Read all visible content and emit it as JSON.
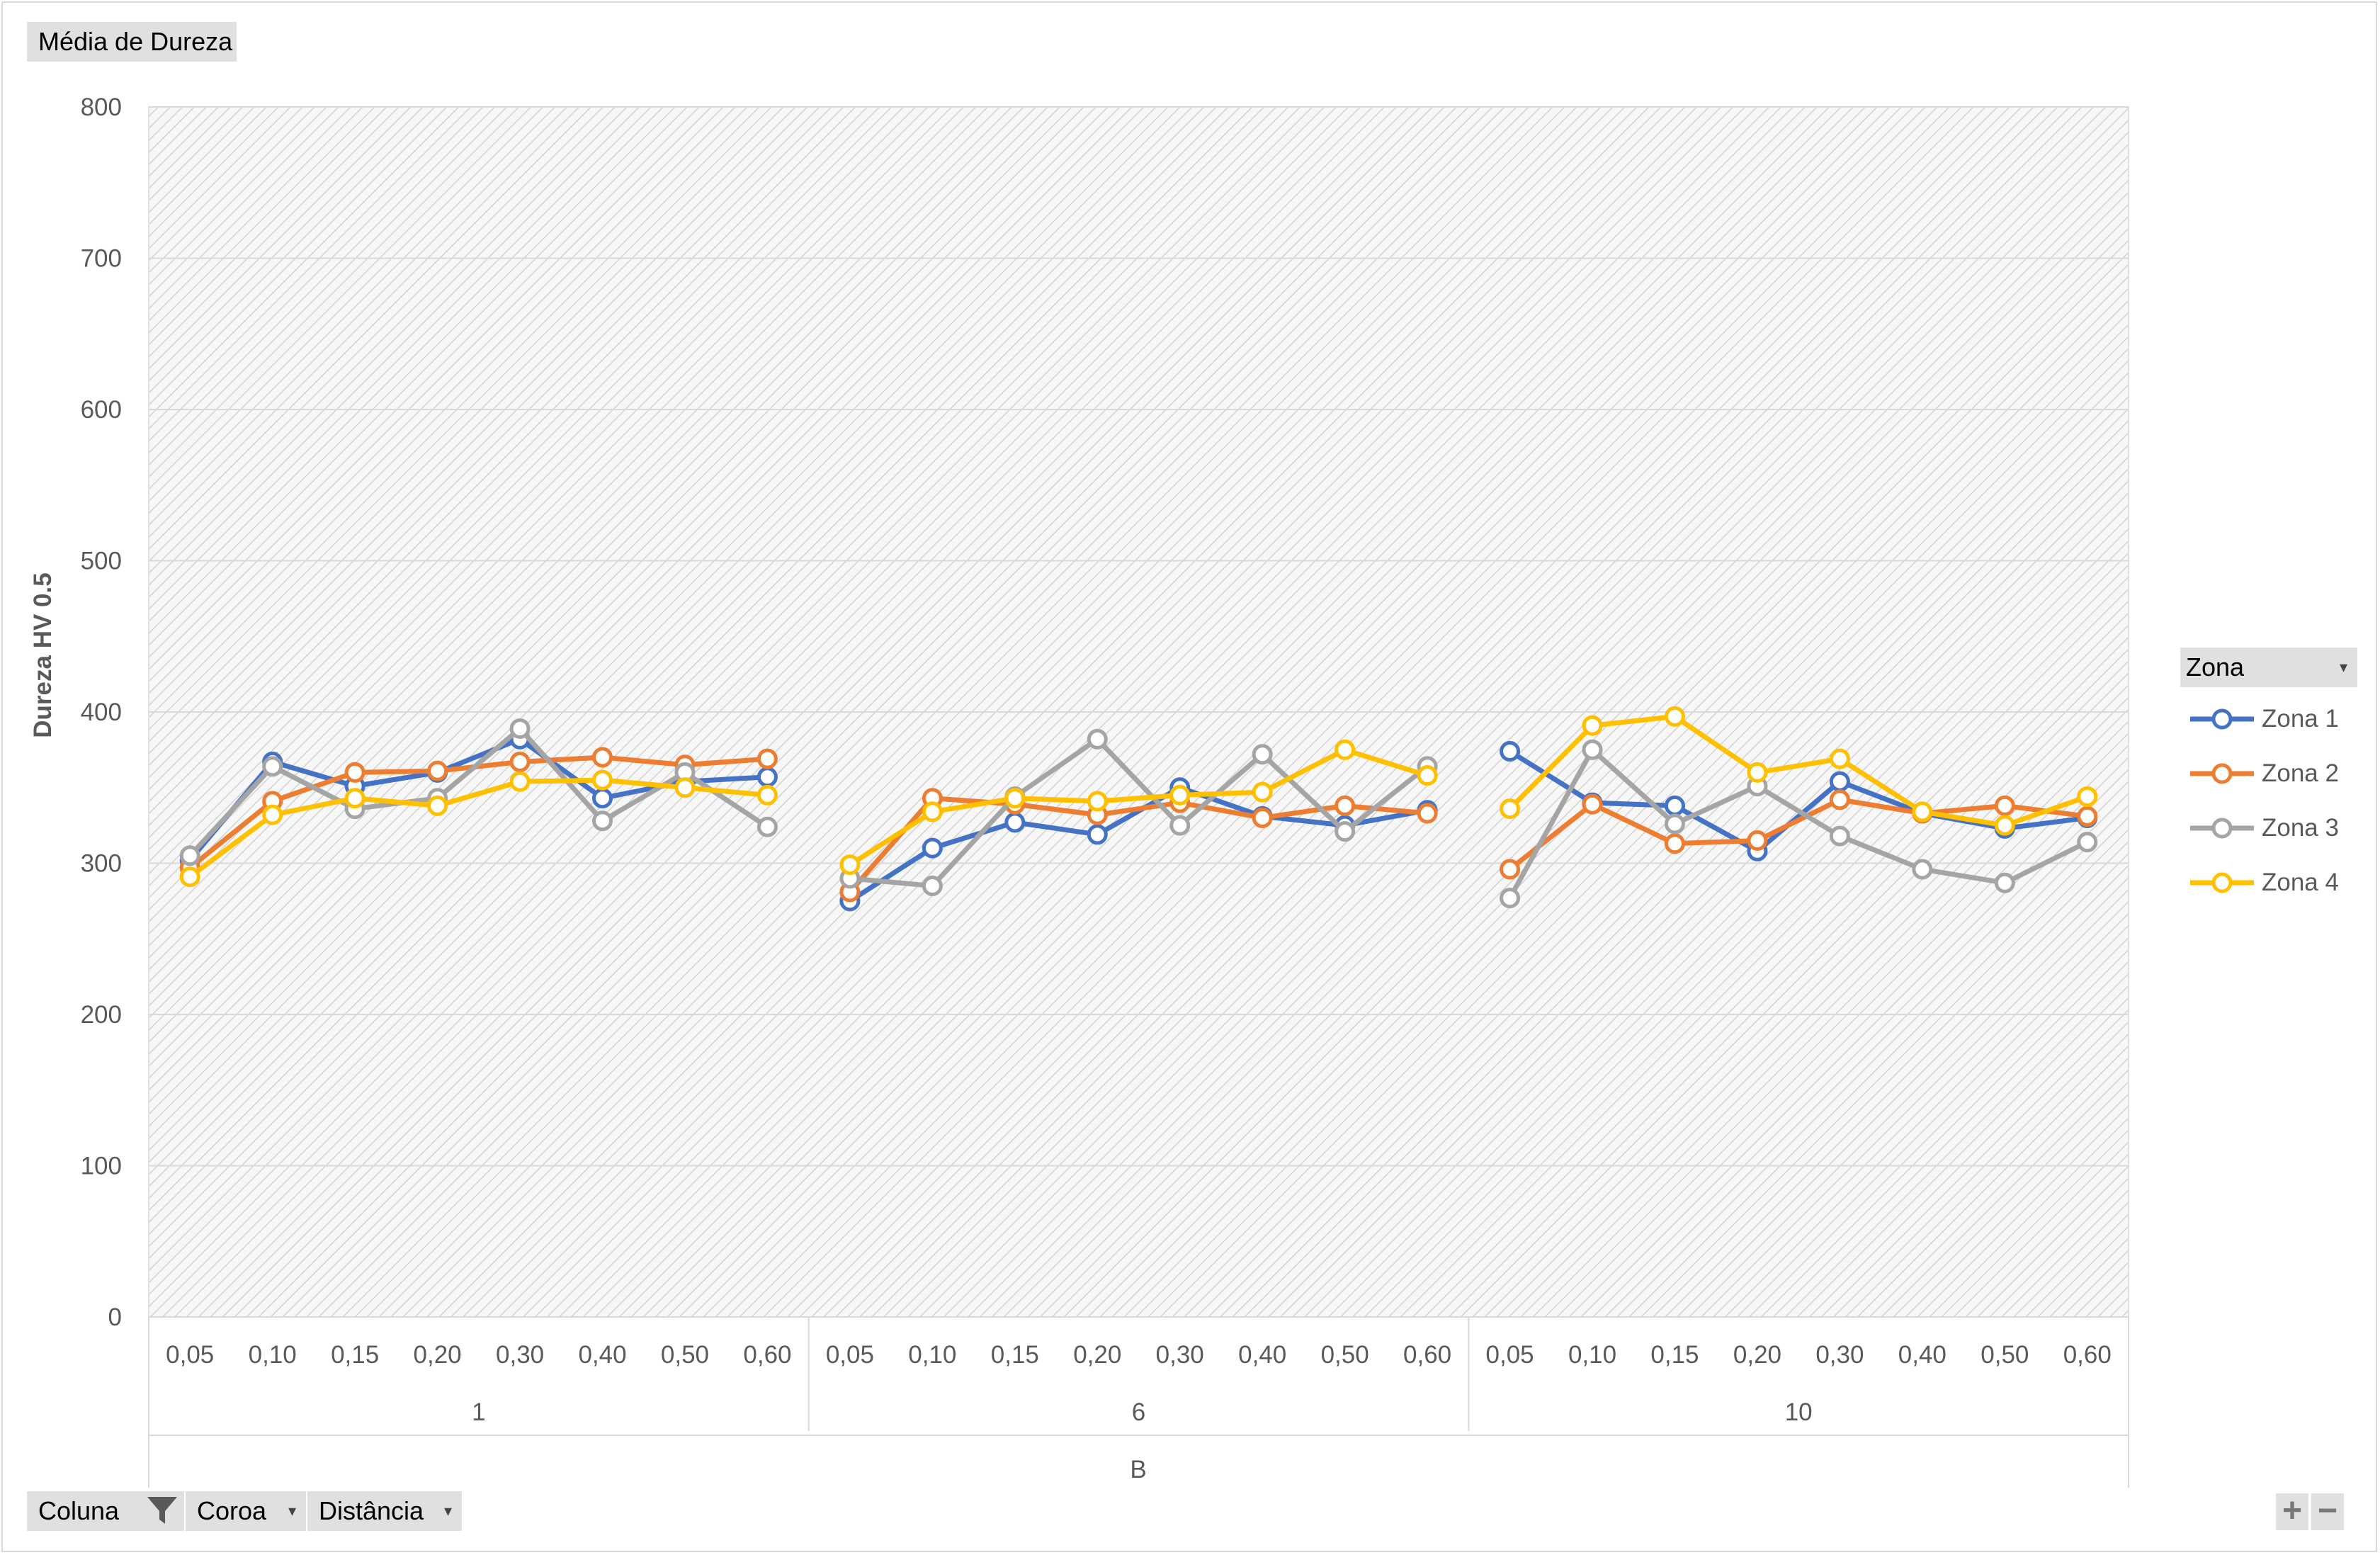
{
  "header": {
    "title": "Média de Dureza"
  },
  "filters": {
    "coluna": "Coluna",
    "coroa": "Coroa",
    "distancia": "Distância"
  },
  "legend_box": {
    "title": "Zona"
  },
  "zoom": {
    "plus": "+",
    "minus": "−"
  },
  "colors": {
    "zona1": "#4472C4",
    "zona2": "#ED7D31",
    "zona3": "#A5A5A5",
    "zona4": "#FFC000",
    "grid": "#d9d9d9",
    "plot_hatch": "#d0d0d0"
  },
  "chart_data": {
    "type": "line",
    "title": "",
    "ylabel": "Dureza HV 0.5",
    "xlabel": "B",
    "ylim": [
      0,
      800
    ],
    "yticks": [
      0,
      100,
      200,
      300,
      400,
      500,
      600,
      700,
      800
    ],
    "grid": true,
    "legend_position": "right",
    "groups": [
      "1",
      "6",
      "10"
    ],
    "categories": [
      "0,05",
      "0,10",
      "0,15",
      "0,20",
      "0,30",
      "0,40",
      "0,50",
      "0,60"
    ],
    "series": [
      {
        "name": "Zona 1",
        "color": "#4472C4",
        "values": [
          [
            302,
            367,
            351,
            360,
            382,
            343,
            354,
            357
          ],
          [
            275,
            310,
            327,
            319,
            350,
            331,
            325,
            335
          ],
          [
            374,
            340,
            338,
            308,
            354,
            333,
            323,
            330
          ]
        ]
      },
      {
        "name": "Zona 2",
        "color": "#ED7D31",
        "values": [
          [
            297,
            341,
            360,
            361,
            367,
            370,
            365,
            369
          ],
          [
            281,
            343,
            339,
            332,
            340,
            330,
            338,
            333
          ],
          [
            296,
            339,
            313,
            315,
            342,
            333,
            338,
            331
          ]
        ]
      },
      {
        "name": "Zona 3",
        "color": "#A5A5A5",
        "values": [
          [
            305,
            364,
            336,
            343,
            389,
            328,
            360,
            324
          ],
          [
            290,
            285,
            344,
            382,
            325,
            372,
            321,
            364
          ],
          [
            277,
            375,
            326,
            351,
            318,
            296,
            287,
            314
          ]
        ]
      },
      {
        "name": "Zona 4",
        "color": "#FFC000",
        "values": [
          [
            291,
            332,
            343,
            338,
            354,
            355,
            350,
            345
          ],
          [
            299,
            334,
            343,
            341,
            345,
            347,
            375,
            358
          ],
          [
            336,
            391,
            397,
            360,
            369,
            334,
            325,
            344
          ]
        ]
      }
    ]
  }
}
